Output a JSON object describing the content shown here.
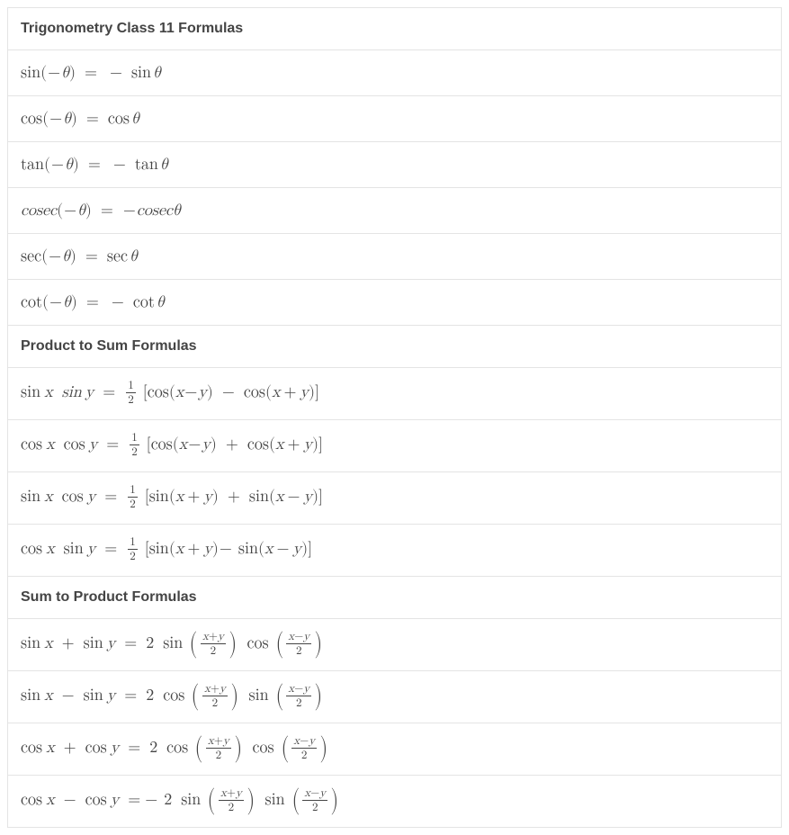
{
  "table": {
    "border_color": "#e4e4e4",
    "text_color": "#444444",
    "background_color": "#ffffff",
    "heading_fontsize": 15,
    "formula_fontsize": 18,
    "frac_fontsize": 13
  },
  "section1": {
    "heading": "Trigonometry Class 11 Formulas"
  },
  "neg": {
    "sin_lhs_fn": "sin",
    "sin_rhs_fn": "sin",
    "cos_lhs_fn": "cos",
    "cos_rhs_fn": "cos",
    "tan_lhs_fn": "tan",
    "tan_rhs_fn": "tan",
    "cosec_lhs_fn": "cosec",
    "cosec_rhs_fn": "cosecθ",
    "sec_lhs_fn": "sec",
    "sec_rhs_fn": "sec",
    "cot_lhs_fn": "cot",
    "cot_rhs_fn": "cot",
    "theta": "θ",
    "minus": "−",
    "eq": "="
  },
  "section2": {
    "heading": "Product to Sum Formulas"
  },
  "p2s": {
    "half_num": "1",
    "half_den": "2",
    "sin": "sin",
    "cos": "cos",
    "x": "x",
    "y": "y",
    "plus": "+",
    "minus": "−",
    "eq": "="
  },
  "section3": {
    "heading": "Sum to Product Formulas"
  },
  "s2p": {
    "two": "2",
    "sin": "sin",
    "cos": "cos",
    "x": "x",
    "y": "y",
    "plus": "+",
    "minus": "−",
    "eq": "=",
    "frac_xpy_num_a": "x",
    "frac_xpy_num_op": "+",
    "frac_xpy_num_b": "y",
    "frac_xmy_num_a": "x",
    "frac_xmy_num_op": "−",
    "frac_xmy_num_b": "y",
    "frac_den": "2"
  }
}
